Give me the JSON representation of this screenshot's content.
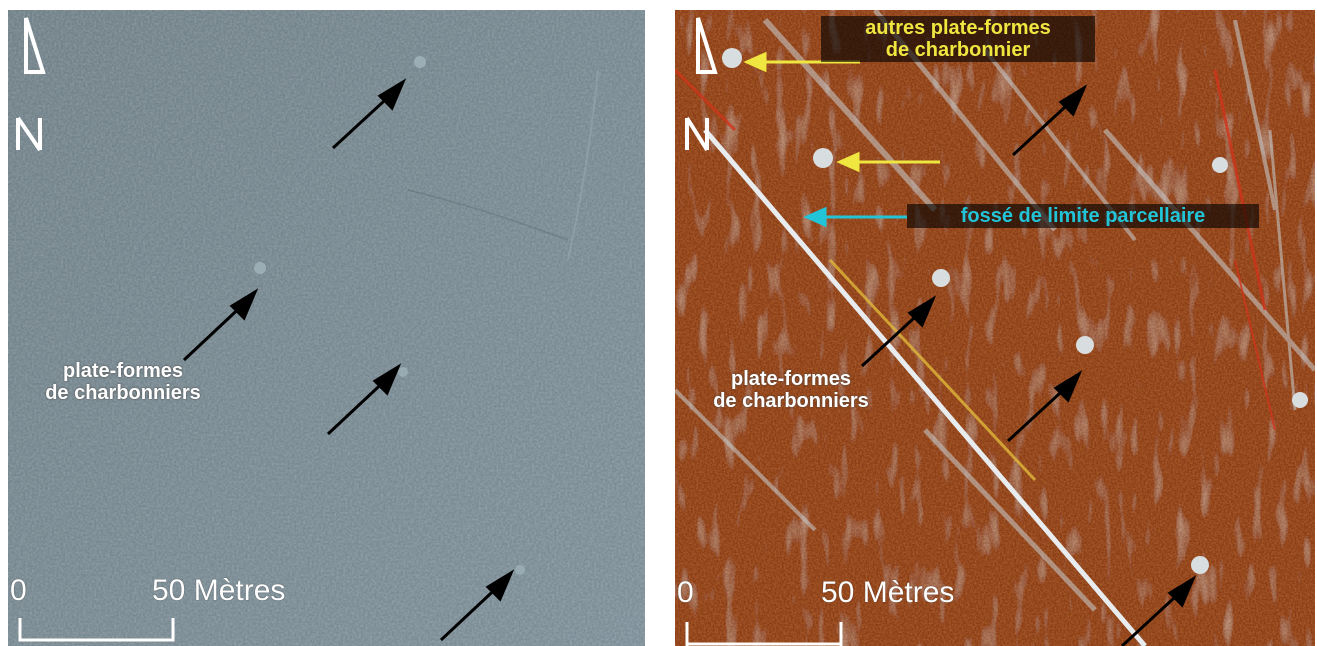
{
  "left_panel": {
    "label_charbonniers": "plate-formes\nde charbonniers",
    "scale_zero": "0",
    "scale_distance": "50 Mètres",
    "north_symbol": "north-arrow-icon",
    "background_color": "#6f8088"
  },
  "right_panel": {
    "label_autres": "autres plate-formes\nde charbonnier",
    "label_fosse": "fossé de limite parcellaire",
    "label_charbonniers": "plate-formes\nde charbonniers",
    "scale_zero": "0",
    "scale_distance": "50 Mètres",
    "north_symbol": "north-arrow-icon",
    "background_color": "#8a3a12"
  },
  "colors": {
    "annotation_yellow": "#f0e640",
    "annotation_cyan": "#22c4d8",
    "arrow_black": "#000000",
    "label_white": "#ffffff"
  }
}
